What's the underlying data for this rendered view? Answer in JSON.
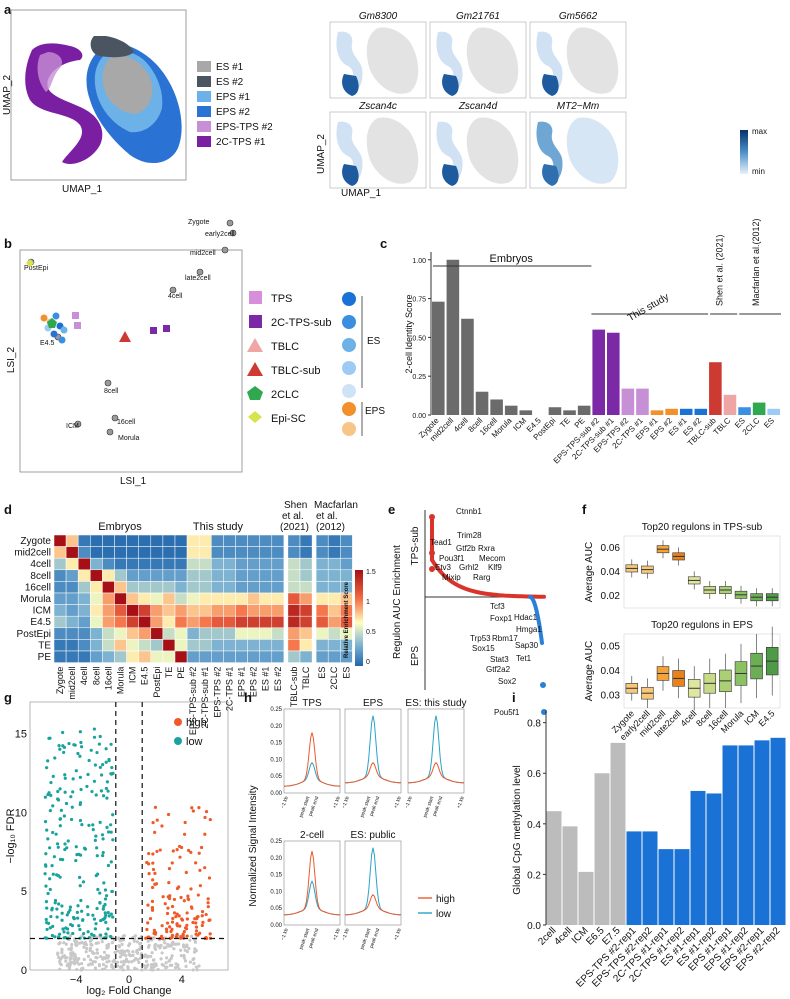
{
  "colors": {
    "es1": "#a8a8a8",
    "es2": "#4a5561",
    "eps1": "#6cb2e8",
    "eps2": "#2a72d4",
    "epstps2": "#c78fd6",
    "tps2c1": "#7a1fa2",
    "gray": "#6b6b6b",
    "lightgray": "#cccccc",
    "orange": "#f2902b",
    "lightorange": "#f8c589",
    "red": "#cc3a31",
    "pink": "#f0a5a5",
    "blue": "#1a72d6",
    "green": "#2fa84f",
    "teal": "#1aa39c",
    "purple": "#7b29a6"
  },
  "panels": {
    "a": {
      "label": "a",
      "umap_x": "UMAP_1",
      "umap_y": "UMAP_2",
      "legend": [
        {
          "name": "ES #1",
          "color": "#a8a8a8"
        },
        {
          "name": "ES #2",
          "color": "#4a5561"
        },
        {
          "name": "EPS #1",
          "color": "#6cb2e8"
        },
        {
          "name": "EPS #2",
          "color": "#2a72d4"
        },
        {
          "name": "EPS-TPS #2",
          "color": "#c78fd6"
        },
        {
          "name": "2C-TPS #1",
          "color": "#7a1fa2"
        }
      ],
      "feature_titles": [
        "Gm8300",
        "Gm21761",
        "Gm5662",
        "Zscan4c",
        "Zscan4d",
        "MT2−Mm"
      ],
      "colorbar_max": "max",
      "colorbar_min": "min"
    },
    "b": {
      "label": "b",
      "xlab": "LSI_1",
      "ylab": "LSI_2",
      "points": [
        "PostEpi",
        "Zygote",
        "early2cell",
        "mid2cell",
        "late2cell",
        "4cell",
        "8cell",
        "16cell",
        "Morula",
        "ICM",
        "E4.5"
      ],
      "legend": [
        "TPS",
        "2C-TPS-sub",
        "TBLC",
        "TBLC-sub",
        "2CLC",
        "Epi-SC"
      ],
      "group_es": "ES",
      "group_eps": "EPS"
    },
    "c": {
      "label": "c",
      "ylab": "2-cell Identity Score",
      "header_embryos": "Embryos",
      "header_study": "This study",
      "header_shen": "Shen et al. (2021)",
      "header_macfarlan": "Macfarlan et al.(2012)",
      "yticks": [
        "0.00",
        "0.25",
        "0.50",
        "0.75",
        "1.00"
      ]
    },
    "d": {
      "label": "d",
      "header_embryos": "Embryos",
      "header_study": "This study",
      "header_shen": "Shen et al. (2021)",
      "header_macfarlan": "Macfarlan et al. (2012)",
      "rows": [
        "Zygote",
        "mid2cell",
        "4cell",
        "8cell",
        "16cell",
        "Morula",
        "ICM",
        "E4.5",
        "PostEpi",
        "TE",
        "PE"
      ],
      "cols": [
        "Zygote",
        "mid2cell",
        "4cell",
        "8cell",
        "16cell",
        "Morula",
        "ICM",
        "E4.5",
        "PostEpi",
        "TE",
        "PE",
        "EPS-TPS-sub #2",
        "2C-TPS-sub #1",
        "EPS-TPS #2",
        "2C-TPS #1",
        "EPS #1",
        "EPS #2",
        "ES #1",
        "ES #2",
        "TBLC-sub",
        "TBLC",
        "ES",
        "2CLC",
        "ES"
      ],
      "scale_title": "Relative Enrichment Score",
      "scale_ticks": [
        "1.5",
        "1",
        "0.5",
        "0"
      ]
    },
    "e": {
      "label": "e",
      "ylab": "Regulon AUC Enrichment",
      "top_label": "TPS-sub",
      "bottom_label": "EPS",
      "red_labels": [
        "Ctnnb1",
        "Trim28",
        "Tead1",
        "Gtf2b",
        "Rxra",
        "Pou3f1",
        "Mecom",
        "Etv3",
        "Grhl2",
        "Klf9",
        "Mixip",
        "Rarg"
      ],
      "blue_labels": [
        "Tcf3",
        "Hdac1",
        "Foxp1",
        "Hmga1",
        "Trp53",
        "Rbm17",
        "Sox15",
        "Sap30",
        "Stat3",
        "Tet1",
        "Gtf2a2",
        "Sox2",
        "Pou5f1"
      ]
    },
    "f": {
      "label": "f",
      "title_top": "Top20 regulons in TPS-sub",
      "title_bottom": "Top20 regulons in EPS",
      "ylab": "Average AUC",
      "yticks_top": [
        "0.06",
        "0.04",
        "0.02"
      ],
      "yticks_bottom": [
        "0.05",
        "0.04",
        "0.03"
      ],
      "stages": [
        "Zygote",
        "early2cell",
        "mid2cell",
        "late2cell",
        "4cell",
        "8cell",
        "16cell",
        "Morula",
        "ICM",
        "E4.5"
      ]
    },
    "g": {
      "label": "g",
      "xlab": "log₂ Fold Change",
      "ylab": "−log₁₀ FDR",
      "legend_high": "high",
      "legend_low": "low",
      "xticks": [
        "−4",
        "0",
        "4"
      ],
      "yticks": [
        "15",
        "10",
        "5",
        "0"
      ]
    },
    "h": {
      "label": "h",
      "ylab": "Normalized Signal Intensity",
      "titles": [
        "TPS",
        "EPS",
        "ES: this study",
        "2-cell",
        "ES: public"
      ],
      "xticks": [
        "−1 kb",
        "peak start",
        "peak end",
        "+1 kb"
      ],
      "yticks": [
        "0.25",
        "0.20",
        "0.15",
        "0.10",
        "0.05",
        "0.00"
      ],
      "legend_high": "high",
      "legend_low": "low"
    },
    "i": {
      "label": "i",
      "ylab": "Global CpG methylation level",
      "yticks": [
        "0.8",
        "0.6",
        "0.4",
        "0.2",
        "0.0"
      ]
    }
  },
  "chart_data": [
    {
      "type": "bar",
      "id": "c",
      "ylabel": "2-cell Identity Score",
      "ylim": [
        0,
        1.05
      ],
      "categories": [
        "Zygote",
        "mid2cell",
        "4cell",
        "8cell",
        "16cell",
        "Morula",
        "ICM",
        "E4.5",
        "PostEpi",
        "TE",
        "PE",
        "EPS-TPS-sub #2",
        "2C-TPS-sub #1",
        "EPS-TPS #2",
        "2C-TPS #1",
        "EPS #1",
        "EPS #2",
        "ES #1",
        "ES #2",
        "TBLC-sub",
        "TBLC",
        "ES",
        "2CLC",
        "ES"
      ],
      "values": [
        0.73,
        1.0,
        0.62,
        0.15,
        0.1,
        0.06,
        0.03,
        0.0,
        0.05,
        0.03,
        0.06,
        0.55,
        0.53,
        0.17,
        0.17,
        0.03,
        0.04,
        0.04,
        0.04,
        0.34,
        0.13,
        0.05,
        0.08,
        0.04
      ],
      "colors": [
        "#6b6b6b",
        "#6b6b6b",
        "#6b6b6b",
        "#6b6b6b",
        "#6b6b6b",
        "#6b6b6b",
        "#6b6b6b",
        "#6b6b6b",
        "#6b6b6b",
        "#6b6b6b",
        "#6b6b6b",
        "#7b29a6",
        "#7b29a6",
        "#c78fd6",
        "#c78fd6",
        "#f2902b",
        "#f2902b",
        "#1a72d6",
        "#1a72d6",
        "#cc3a31",
        "#f0a5a5",
        "#3a8fe0",
        "#2fa84f",
        "#9ecbf5"
      ]
    },
    {
      "type": "bar",
      "id": "i",
      "ylabel": "Global CpG methylation level",
      "ylim": [
        0,
        0.85
      ],
      "categories": [
        "2cell",
        "4cell",
        "ICM",
        "E6.5",
        "E7.5",
        "EPS-TPS #2-rep1",
        "EPS-TPS #2-rep2",
        "2C-TPS #1-rep1",
        "2C-TPS #1-rep2",
        "ES #1-rep1",
        "ES #1-rep2",
        "EPS #1-rep1",
        "EPS #1-rep2",
        "EPS #2-rep1",
        "EPS #2-rep2"
      ],
      "values": [
        0.45,
        0.39,
        0.21,
        0.6,
        0.72,
        0.37,
        0.37,
        0.3,
        0.3,
        0.53,
        0.52,
        0.71,
        0.71,
        0.73,
        0.74
      ],
      "colors": [
        "#bcbcbc",
        "#bcbcbc",
        "#bcbcbc",
        "#bcbcbc",
        "#bcbcbc",
        "#1a72d6",
        "#1a72d6",
        "#1a72d6",
        "#1a72d6",
        "#1a72d6",
        "#1a72d6",
        "#1a72d6",
        "#1a72d6",
        "#1a72d6",
        "#1a72d6"
      ]
    },
    {
      "type": "heatmap",
      "id": "d",
      "title": "Relative Enrichment Score",
      "range": [
        0,
        1.5
      ],
      "matrix": [
        [
          1.5,
          0.9,
          0.1,
          0.05,
          0.05,
          0.05,
          0.05,
          0.05,
          0.05,
          0.05,
          0.05,
          0.8,
          0.8,
          0.2,
          0.2,
          0.2,
          0.2,
          0.2,
          0.2,
          0.2,
          0.1,
          0.2,
          0.1,
          0.2
        ],
        [
          0.9,
          1.5,
          0.2,
          0.05,
          0.05,
          0.05,
          0.05,
          0.05,
          0.05,
          0.05,
          0.05,
          0.8,
          0.8,
          0.2,
          0.2,
          0.2,
          0.2,
          0.2,
          0.2,
          0.2,
          0.1,
          0.2,
          0.1,
          0.2
        ],
        [
          0.5,
          0.8,
          1.5,
          0.4,
          0.2,
          0.1,
          0.1,
          0.1,
          0.1,
          0.1,
          0.1,
          0.6,
          0.6,
          0.4,
          0.4,
          0.3,
          0.3,
          0.3,
          0.3,
          0.6,
          0.5,
          0.4,
          0.4,
          0.3
        ],
        [
          0.2,
          0.3,
          0.8,
          1.5,
          0.8,
          0.5,
          0.3,
          0.3,
          0.3,
          0.3,
          0.3,
          0.5,
          0.5,
          0.4,
          0.4,
          0.3,
          0.3,
          0.3,
          0.3,
          0.6,
          0.5,
          0.4,
          0.4,
          0.4
        ],
        [
          0.2,
          0.2,
          0.5,
          0.8,
          1.5,
          0.9,
          0.5,
          0.5,
          0.5,
          0.5,
          0.4,
          0.5,
          0.5,
          0.4,
          0.4,
          0.3,
          0.3,
          0.3,
          0.3,
          0.6,
          0.6,
          0.4,
          0.4,
          0.4
        ],
        [
          0.3,
          0.3,
          0.4,
          0.7,
          1.0,
          1.5,
          0.9,
          0.8,
          0.7,
          0.9,
          0.6,
          0.7,
          0.8,
          0.8,
          0.8,
          0.8,
          0.9,
          0.8,
          0.8,
          1.2,
          1.0,
          0.8,
          0.8,
          0.9
        ],
        [
          0.4,
          0.3,
          0.4,
          0.8,
          1.0,
          1.2,
          1.5,
          1.3,
          1.0,
          0.9,
          1.0,
          0.9,
          0.9,
          1.0,
          1.0,
          1.1,
          1.0,
          1.0,
          1.0,
          1.4,
          1.3,
          1.1,
          0.9,
          1.1
        ],
        [
          0.5,
          0.4,
          0.3,
          0.7,
          1.0,
          1.1,
          1.3,
          1.5,
          1.0,
          0.8,
          1.1,
          1.0,
          1.1,
          1.2,
          1.2,
          1.3,
          1.3,
          1.3,
          1.3,
          1.4,
          1.3,
          1.2,
          1.0,
          1.2
        ],
        [
          0.2,
          0.2,
          0.2,
          0.4,
          0.6,
          0.7,
          0.9,
          1.0,
          1.5,
          0.6,
          0.7,
          0.4,
          0.5,
          0.5,
          0.5,
          0.7,
          0.7,
          0.7,
          0.6,
          1.0,
          0.9,
          0.7,
          0.6,
          0.7
        ],
        [
          0.1,
          0.1,
          0.2,
          0.4,
          0.6,
          0.9,
          0.7,
          0.6,
          0.5,
          1.5,
          0.7,
          0.5,
          0.5,
          0.4,
          0.4,
          0.4,
          0.4,
          0.4,
          0.4,
          1.1,
          0.8,
          0.4,
          0.4,
          0.4
        ],
        [
          0.1,
          0.1,
          0.1,
          0.3,
          0.4,
          0.5,
          0.8,
          0.9,
          0.7,
          0.7,
          1.5,
          0.3,
          0.3,
          0.3,
          0.3,
          0.3,
          0.3,
          0.3,
          0.3,
          0.5,
          0.4,
          0.3,
          0.3,
          0.3
        ]
      ]
    },
    {
      "type": "scatter",
      "id": "g",
      "xlabel": "log2 Fold Change",
      "ylabel": "-log10 FDR",
      "xlim": [
        -7.5,
        7.5
      ],
      "ylim": [
        0,
        17
      ],
      "thresholds": {
        "x": [
          -1,
          1
        ],
        "y": 2
      },
      "series": [
        {
          "name": "high",
          "color": "#f05a28"
        },
        {
          "name": "low",
          "color": "#1aa39c"
        }
      ]
    },
    {
      "type": "line",
      "id": "h",
      "ylabel": "Normalized Signal Intensity",
      "ylim": [
        0,
        0.25
      ],
      "panels": [
        {
          "title": "TPS",
          "high_peak": 0.16,
          "low_peak": 0.07,
          "base": 0.02
        },
        {
          "title": "EPS",
          "high_peak": 0.07,
          "low_peak": 0.21,
          "base": 0.03
        },
        {
          "title": "ES: this study",
          "high_peak": 0.07,
          "low_peak": 0.21,
          "base": 0.03
        },
        {
          "title": "2-cell",
          "high_peak": 0.2,
          "low_peak": 0.11,
          "base": 0.03
        },
        {
          "title": "ES: public",
          "high_peak": 0.07,
          "low_peak": 0.21,
          "base": 0.03
        }
      ]
    },
    {
      "type": "box",
      "id": "f",
      "panels": [
        {
          "title": "Top20 regulons in TPS-sub",
          "ylim": [
            0.01,
            0.07
          ],
          "medians": [
            0.043,
            0.042,
            0.059,
            0.053,
            0.033,
            0.025,
            0.025,
            0.021,
            0.019,
            0.019
          ]
        },
        {
          "title": "Top20 regulons in EPS",
          "ylim": [
            0.025,
            0.055
          ],
          "medians": [
            0.033,
            0.031,
            0.039,
            0.037,
            0.033,
            0.035,
            0.036,
            0.039,
            0.042,
            0.044
          ]
        }
      ]
    }
  ]
}
